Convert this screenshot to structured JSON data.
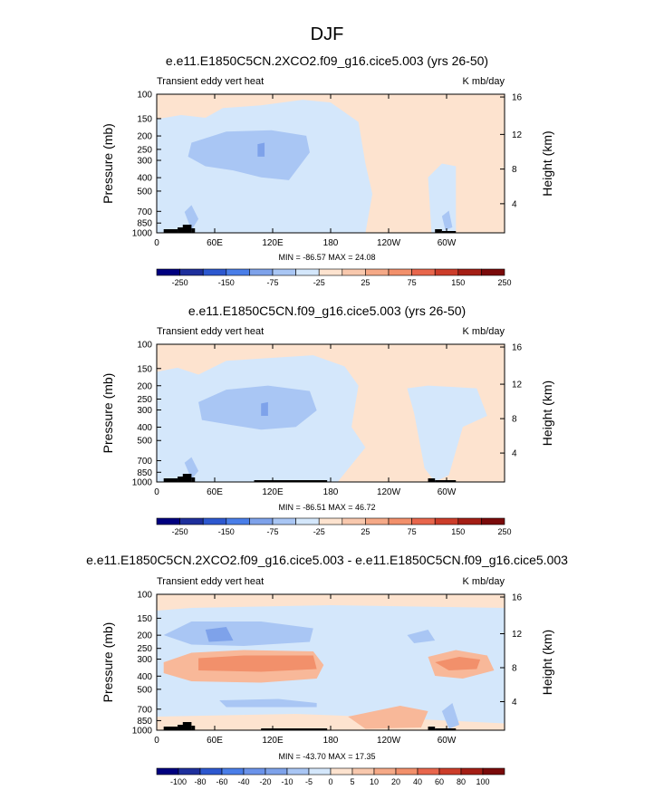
{
  "figure": {
    "title": "DJF"
  },
  "colors": {
    "panel_bg": "#fde3cf",
    "contour_fill": "#d4e7fb",
    "mid_blue": "#a9c6f4",
    "deep_blue": "#7ea2ea",
    "light_orange": "#f8b899",
    "orange": "#f2906b",
    "topography": "#000000"
  },
  "chart_data": [
    {
      "type": "heatmap",
      "title": "e.e11.E1850C5CN.2XCO2.f09_g16.cice5.003 (yrs 26-50)",
      "left_label": "Transient eddy vert heat",
      "right_label": "K mb/day",
      "ylabel": "Pressure (mb)",
      "ylabel_right": "Height (km)",
      "yticks": [
        "100",
        "150",
        "200",
        "250",
        "300",
        "400",
        "500",
        "700",
        "850",
        "1000"
      ],
      "yticks_right": [
        "4",
        "8",
        "12",
        "16"
      ],
      "xticks": [
        "0",
        "60E",
        "120E",
        "180",
        "120W",
        "60W"
      ],
      "stats": "MIN = -86.57  MAX =  24.08",
      "colorbar": {
        "labels": [
          "-250",
          "-150",
          "-75",
          "-25",
          "25",
          "75",
          "150",
          "250"
        ],
        "colors": [
          "#00007f",
          "#1e2f9c",
          "#2d58cf",
          "#4a7ee8",
          "#7ea2ea",
          "#a9c6f4",
          "#d4e7fb",
          "#fde3cf",
          "#f8c8ad",
          "#f5a987",
          "#f2906b",
          "#e8664c",
          "#cc3d2a",
          "#a41e15",
          "#7a0a0a"
        ]
      }
    },
    {
      "type": "heatmap",
      "title": "e.e11.E1850C5CN.f09_g16.cice5.003 (yrs 26-50)",
      "left_label": "Transient eddy vert heat",
      "right_label": "K mb/day",
      "ylabel": "Pressure (mb)",
      "ylabel_right": "Height (km)",
      "yticks": [
        "100",
        "150",
        "200",
        "250",
        "300",
        "400",
        "500",
        "700",
        "850",
        "1000"
      ],
      "yticks_right": [
        "4",
        "8",
        "12",
        "16"
      ],
      "xticks": [
        "0",
        "60E",
        "120E",
        "180",
        "120W",
        "60W"
      ],
      "stats": "MIN = -86.51  MAX =  46.72",
      "colorbar": {
        "labels": [
          "-250",
          "-150",
          "-75",
          "-25",
          "25",
          "75",
          "150",
          "250"
        ],
        "colors": [
          "#00007f",
          "#1e2f9c",
          "#2d58cf",
          "#4a7ee8",
          "#7ea2ea",
          "#a9c6f4",
          "#d4e7fb",
          "#fde3cf",
          "#f8c8ad",
          "#f5a987",
          "#f2906b",
          "#e8664c",
          "#cc3d2a",
          "#a41e15",
          "#7a0a0a"
        ]
      }
    },
    {
      "type": "heatmap",
      "title": "e.e11.E1850C5CN.2XCO2.f09_g16.cice5.003 - e.e11.E1850C5CN.f09_g16.cice5.003",
      "left_label": "Transient eddy vert heat",
      "right_label": "K mb/day",
      "ylabel": "Pressure (mb)",
      "ylabel_right": "Height (km)",
      "yticks": [
        "100",
        "150",
        "200",
        "250",
        "300",
        "400",
        "500",
        "700",
        "850",
        "1000"
      ],
      "yticks_right": [
        "4",
        "8",
        "12",
        "16"
      ],
      "xticks": [
        "0",
        "60E",
        "120E",
        "180",
        "120W",
        "60W"
      ],
      "stats": "MIN = -43.70  MAX =  17.35",
      "colorbar": {
        "labels": [
          "-100",
          "-80",
          "-60",
          "-40",
          "-20",
          "-10",
          "-5",
          "0",
          "5",
          "10",
          "20",
          "40",
          "60",
          "80",
          "100"
        ],
        "colors": [
          "#00007f",
          "#1e2f9c",
          "#2d58cf",
          "#4a7ee8",
          "#6b93ea",
          "#7ea2ea",
          "#a9c6f4",
          "#d4e7fb",
          "#fde3cf",
          "#f8c8ad",
          "#f5a987",
          "#f2906b",
          "#e8664c",
          "#cc3d2a",
          "#a41e15",
          "#7a0a0a"
        ]
      }
    }
  ]
}
